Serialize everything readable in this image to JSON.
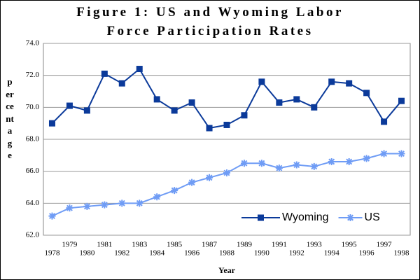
{
  "chart_data": {
    "type": "line",
    "title": "Figure 1: US and Wyoming Labor Force Participation Rates",
    "x_label": "Year",
    "y_label": "percentage",
    "categories": [
      "1978",
      "1979",
      "1980",
      "1981",
      "1982",
      "1983",
      "1984",
      "1985",
      "1986",
      "1987",
      "1988",
      "1989",
      "1990",
      "1991",
      "1992",
      "1993",
      "1994",
      "1995",
      "1996",
      "1997",
      "1998"
    ],
    "series": [
      {
        "name": "Wyoming",
        "color": "#0b3a9a",
        "marker": "square",
        "values": [
          69.0,
          70.1,
          69.8,
          72.1,
          71.5,
          72.4,
          70.5,
          69.8,
          70.3,
          68.7,
          68.9,
          69.5,
          71.6,
          70.3,
          70.5,
          70.0,
          71.6,
          71.5,
          70.9,
          69.1,
          70.4
        ]
      },
      {
        "name": "US",
        "color": "#6f9cf5",
        "marker": "star",
        "values": [
          63.2,
          63.7,
          63.8,
          63.9,
          64.0,
          64.0,
          64.4,
          64.8,
          65.3,
          65.6,
          65.9,
          66.5,
          66.5,
          66.2,
          66.4,
          66.3,
          66.6,
          66.6,
          66.8,
          67.1,
          67.1
        ]
      }
    ],
    "ylim": [
      62,
      74
    ],
    "yticks": [
      {
        "value": 62,
        "label": "62.0"
      },
      {
        "value": 64,
        "label": "64.0"
      },
      {
        "value": 66,
        "label": "66.0"
      },
      {
        "value": 68,
        "label": "68.0"
      },
      {
        "value": 70,
        "label": "70.0"
      },
      {
        "value": 72,
        "label": "72.0"
      },
      {
        "value": 74,
        "label": "74.0"
      }
    ],
    "grid": true,
    "legend": "bottom-right"
  }
}
